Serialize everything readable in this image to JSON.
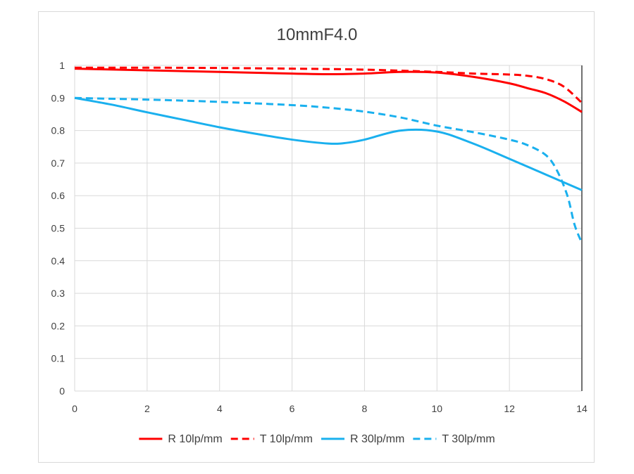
{
  "chart_data": {
    "type": "line",
    "title": "10mmF4.0",
    "xlabel": "",
    "ylabel": "",
    "xlim": [
      0,
      14
    ],
    "ylim": [
      0,
      1
    ],
    "xticks": [
      "0",
      "2",
      "4",
      "6",
      "8",
      "10",
      "12",
      "14"
    ],
    "yticks": [
      "0",
      "0.1",
      "0.2",
      "0.3",
      "0.4",
      "0.5",
      "0.6",
      "0.7",
      "0.8",
      "0.9",
      "1"
    ],
    "grid": true,
    "legend_position": "bottom",
    "series": [
      {
        "name": "R 10lp/mm",
        "color": "#ff0000",
        "dash": "solid",
        "x": [
          0,
          2,
          4,
          6,
          7,
          8,
          9,
          10,
          11,
          12,
          12.5,
          13,
          13.5,
          14
        ],
        "y": [
          0.99,
          0.985,
          0.98,
          0.975,
          0.973,
          0.975,
          0.98,
          0.978,
          0.965,
          0.945,
          0.93,
          0.915,
          0.89,
          0.857
        ]
      },
      {
        "name": "T 10lp/mm",
        "color": "#ff0000",
        "dash": "dashed",
        "x": [
          0,
          2,
          4,
          6,
          8,
          10,
          11,
          12,
          12.5,
          13,
          13.5,
          14
        ],
        "y": [
          0.993,
          0.993,
          0.992,
          0.99,
          0.987,
          0.98,
          0.975,
          0.972,
          0.968,
          0.958,
          0.935,
          0.885
        ]
      },
      {
        "name": "R 30lp/mm",
        "color": "#1ab0ee",
        "dash": "solid",
        "x": [
          0,
          1,
          2,
          3,
          4,
          5,
          6,
          7,
          7.5,
          8,
          9,
          10,
          11,
          12,
          13,
          14
        ],
        "y": [
          0.9,
          0.88,
          0.856,
          0.833,
          0.81,
          0.79,
          0.772,
          0.76,
          0.762,
          0.772,
          0.8,
          0.797,
          0.76,
          0.713,
          0.665,
          0.617
        ]
      },
      {
        "name": "T 30lp/mm",
        "color": "#1ab0ee",
        "dash": "dashed",
        "x": [
          0,
          2,
          4,
          6,
          7,
          8,
          9,
          10,
          11,
          12,
          12.5,
          13,
          13.3,
          13.6,
          13.8,
          14
        ],
        "y": [
          0.9,
          0.895,
          0.888,
          0.878,
          0.87,
          0.858,
          0.84,
          0.815,
          0.795,
          0.772,
          0.755,
          0.725,
          0.68,
          0.6,
          0.51,
          0.455
        ]
      }
    ]
  }
}
